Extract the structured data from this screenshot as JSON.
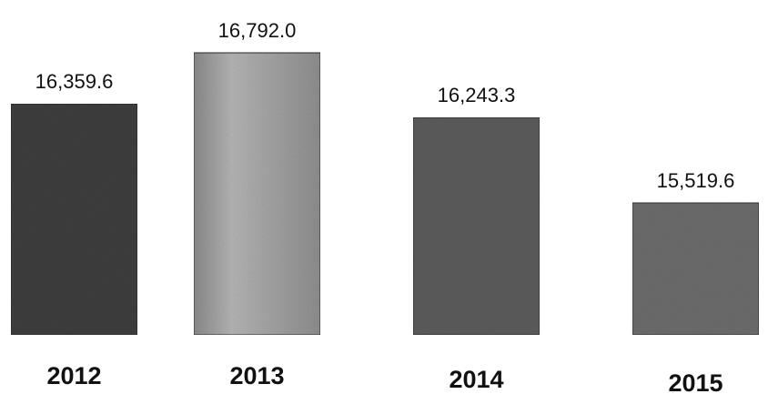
{
  "chart_data": {
    "type": "bar",
    "title": "",
    "xlabel": "",
    "ylabel": "",
    "categories": [
      "2012",
      "2013",
      "2014",
      "2015"
    ],
    "values": [
      16359.6,
      16792.0,
      16243.3,
      15519.6
    ],
    "value_labels": [
      "16,359.6",
      "16,792.0",
      "16,243.3",
      "15,519.6"
    ],
    "ylim": [
      14400,
      16900
    ],
    "grid": false,
    "legend": "none",
    "bar_colors": [
      "#3e3e3e",
      "#a4a4a4",
      "#5c5c5c",
      "#6c6c6c"
    ]
  }
}
